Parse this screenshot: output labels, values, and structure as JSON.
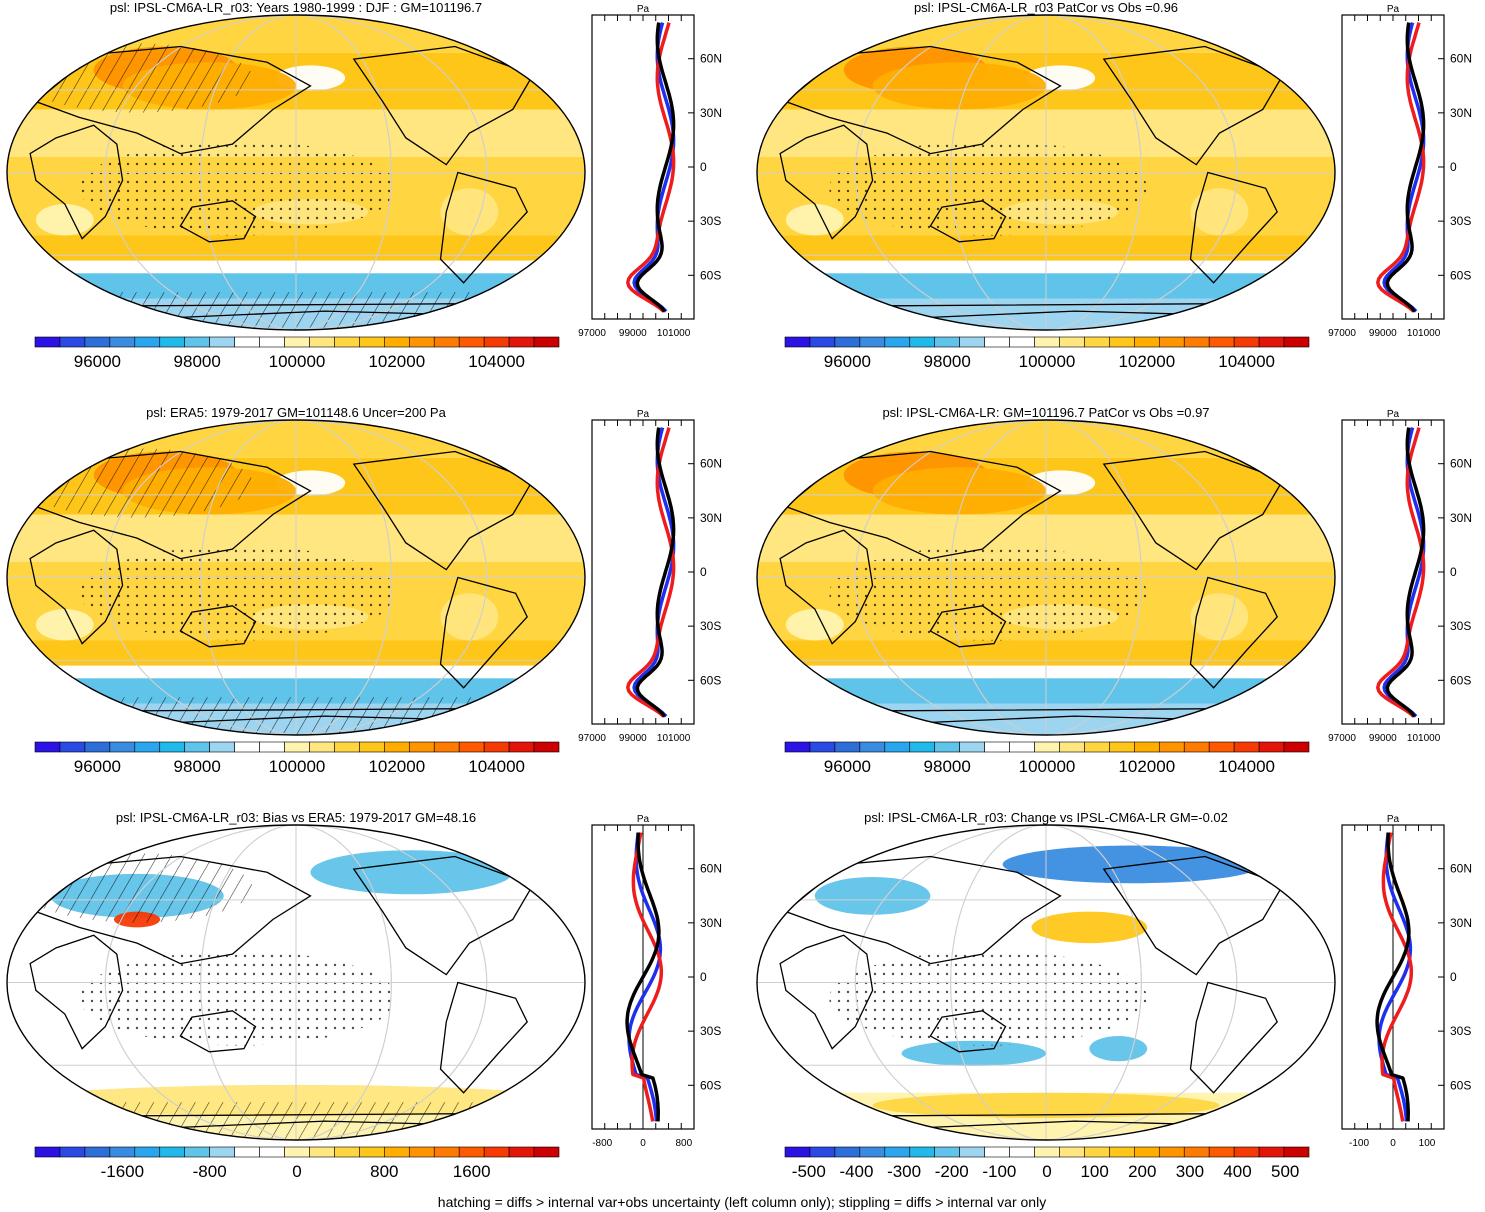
{
  "figure": {
    "caption": "hatching = diffs > internal var+obs uncertainty (left column only); stippling = diffs > internal var only"
  },
  "chart_data": [
    {
      "type": "heatmap",
      "id": "p1",
      "title": "psl: IPSL-CM6A-LR_r03: Years 1980-1999 : DJF : GM=101196.7",
      "field": "psl",
      "units": "Pa",
      "colorbar": {
        "ticks": [
          "96000",
          "98000",
          "100000",
          "102000",
          "104000"
        ],
        "range": [
          94750,
          105250
        ]
      },
      "profile": {
        "xlim": [
          97000,
          102000
        ],
        "xticks": [
          "97000",
          "99000",
          "101000"
        ],
        "ylabels": [
          "60N",
          "30N",
          "0",
          "30S",
          "60S"
        ],
        "xlabel": "Pa",
        "series": [
          "blue",
          "red",
          "black"
        ]
      }
    },
    {
      "type": "heatmap",
      "id": "p2",
      "title": "psl: IPSL-CM6A-LR_r03 PatCor vs Obs =0.96",
      "field": "psl",
      "units": "Pa",
      "colorbar": {
        "ticks": [
          "96000",
          "98000",
          "100000",
          "102000",
          "104000"
        ],
        "range": [
          94750,
          105250
        ]
      },
      "profile": {
        "xlim": [
          97000,
          102000
        ],
        "xticks": [
          "97000",
          "99000",
          "101000"
        ],
        "ylabels": [
          "60N",
          "30N",
          "0",
          "30S",
          "60S"
        ],
        "xlabel": "Pa",
        "series": [
          "blue",
          "red",
          "black"
        ]
      }
    },
    {
      "type": "heatmap",
      "id": "p3",
      "title": "psl: ERA5: 1979-2017 GM=101148.6 Uncer=200 Pa",
      "field": "psl",
      "units": "Pa",
      "colorbar": {
        "ticks": [
          "96000",
          "98000",
          "100000",
          "102000",
          "104000"
        ],
        "range": [
          94750,
          105250
        ]
      },
      "profile": {
        "xlim": [
          97000,
          102000
        ],
        "xticks": [
          "97000",
          "99000",
          "101000"
        ],
        "ylabels": [
          "60N",
          "30N",
          "0",
          "30S",
          "60S"
        ],
        "xlabel": "Pa",
        "series": [
          "blue",
          "red",
          "black"
        ]
      }
    },
    {
      "type": "heatmap",
      "id": "p4",
      "title": "psl: IPSL-CM6A-LR: GM=101196.7 PatCor vs Obs =0.97",
      "field": "psl",
      "units": "Pa",
      "colorbar": {
        "ticks": [
          "96000",
          "98000",
          "100000",
          "102000",
          "104000"
        ],
        "range": [
          94750,
          105250
        ]
      },
      "profile": {
        "xlim": [
          97000,
          102000
        ],
        "xticks": [
          "97000",
          "99000",
          "101000"
        ],
        "ylabels": [
          "60N",
          "30N",
          "0",
          "30S",
          "60S"
        ],
        "xlabel": "Pa",
        "series": [
          "blue",
          "red",
          "black"
        ]
      }
    },
    {
      "type": "heatmap",
      "id": "p5",
      "title": "psl: IPSL-CM6A-LR_r03: Bias vs ERA5: 1979-2017 GM=48.16",
      "field": "psl bias",
      "units": "Pa",
      "colorbar": {
        "ticks": [
          "-1600",
          "-800",
          "0",
          "800",
          "1600"
        ],
        "range": [
          -2400,
          2400
        ]
      },
      "profile": {
        "xlim": [
          -1000,
          1000
        ],
        "xticks": [
          "-800",
          "0",
          "800"
        ],
        "ylabels": [
          "60N",
          "30N",
          "0",
          "30S",
          "60S"
        ],
        "xlabel": "Pa",
        "series": [
          "blue",
          "red",
          "black"
        ]
      }
    },
    {
      "type": "heatmap",
      "id": "p6",
      "title": "psl: IPSL-CM6A-LR_r03: Change vs IPSL-CM6A-LR GM=-0.02",
      "field": "psl change",
      "units": "Pa",
      "colorbar": {
        "ticks": [
          "-500",
          "-400",
          "-300",
          "-200",
          "-100",
          "0",
          "100",
          "200",
          "300",
          "400",
          "500"
        ],
        "range": [
          -550,
          550
        ]
      },
      "profile": {
        "xlim": [
          -150,
          150
        ],
        "xticks": [
          "-100",
          "0",
          "100"
        ],
        "ylabels": [
          "60N",
          "30N",
          "0",
          "30S",
          "60S"
        ],
        "xlabel": "Pa",
        "series": [
          "blue",
          "red",
          "black"
        ]
      }
    }
  ],
  "colors": {
    "sequential": [
      "#2b13e6",
      "#2a49e5",
      "#2e6ed9",
      "#3a8ce0",
      "#2aa6ee",
      "#21b9ea",
      "#60c3ea",
      "#9dd4f0",
      "#ffffff",
      "#ffffff",
      "#fff3b0",
      "#ffe680",
      "#ffd642",
      "#ffc61a",
      "#ffae00",
      "#ff9400",
      "#ff7a00",
      "#ff5a00",
      "#f53a05",
      "#e41508",
      "#cc0000"
    ],
    "diverging": [
      "#2b13e6",
      "#2a49e5",
      "#2e6ed9",
      "#3a8ce0",
      "#2aa6ee",
      "#21b9ea",
      "#60c3ea",
      "#9dd4f0",
      "#ffffff",
      "#ffffff",
      "#fff3b0",
      "#ffe680",
      "#ffd642",
      "#ffc61a",
      "#ffae00",
      "#ff9400",
      "#ff7a00",
      "#ff5a00",
      "#f53a05",
      "#e41508",
      "#cc0000"
    ],
    "blue_series": "#1f2ff0",
    "red_series": "#ee1c1c",
    "black_series": "#000000"
  }
}
